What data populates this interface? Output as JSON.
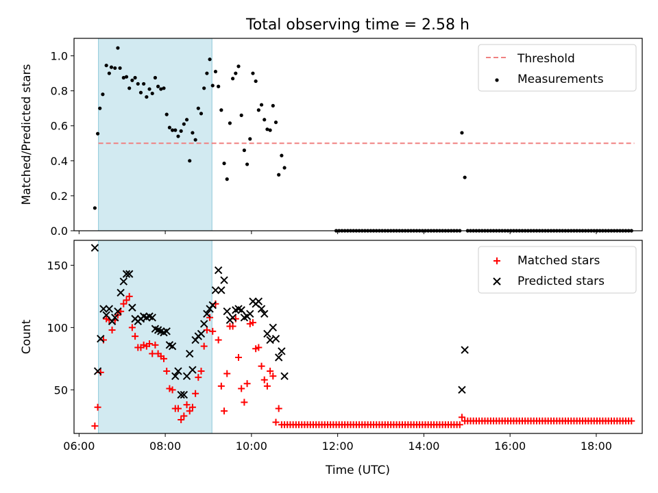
{
  "figure": {
    "title": "Total observing time = 2.58 h",
    "xlabel": "Time (UTC)"
  },
  "chart_data": [
    {
      "type": "scatter",
      "ylabel": "Matched/Predicted stars",
      "xlim": [
        "05:53",
        "19:04"
      ],
      "ylim": [
        0,
        1.1
      ],
      "yticks": [
        0.0,
        0.2,
        0.4,
        0.6,
        0.8,
        1.0
      ],
      "ytick_labels": [
        "0.0",
        "0.2",
        "0.4",
        "0.6",
        "0.8",
        "1.0"
      ],
      "xticks": [
        "06:00",
        "08:00",
        "10:00",
        "12:00",
        "14:00",
        "16:00",
        "18:00"
      ],
      "shaded_region": {
        "x0": "06:27",
        "x1": "09:05",
        "color": "#add8e6"
      },
      "legend": {
        "position": "upper right",
        "entries": [
          "Threshold",
          "Measurements"
        ]
      },
      "threshold": {
        "name": "Threshold",
        "value": 0.5,
        "x0": "06:27",
        "x1": "18:53",
        "color": "#f08080",
        "style": "dashed"
      },
      "series": [
        {
          "name": "Measurements",
          "color": "#000000",
          "marker": "dot",
          "points": [
            [
              "06:22",
              0.13
            ],
            [
              "06:26",
              0.555
            ],
            [
              "06:29",
              0.7
            ],
            [
              "06:33",
              0.78
            ],
            [
              "06:38",
              0.945
            ],
            [
              "06:42",
              0.9
            ],
            [
              "06:45",
              0.935
            ],
            [
              "06:50",
              0.93
            ],
            [
              "06:54",
              1.045
            ],
            [
              "06:57",
              0.93
            ],
            [
              "07:02",
              0.875
            ],
            [
              "07:06",
              0.88
            ],
            [
              "07:10",
              0.815
            ],
            [
              "07:14",
              0.86
            ],
            [
              "07:18",
              0.875
            ],
            [
              "07:22",
              0.84
            ],
            [
              "07:26",
              0.79
            ],
            [
              "07:30",
              0.84
            ],
            [
              "07:34",
              0.765
            ],
            [
              "07:38",
              0.81
            ],
            [
              "07:42",
              0.785
            ],
            [
              "07:46",
              0.875
            ],
            [
              "07:50",
              0.825
            ],
            [
              "07:54",
              0.81
            ],
            [
              "07:58",
              0.815
            ],
            [
              "08:02",
              0.665
            ],
            [
              "08:06",
              0.59
            ],
            [
              "08:10",
              0.575
            ],
            [
              "08:14",
              0.575
            ],
            [
              "08:18",
              0.54
            ],
            [
              "08:22",
              0.57
            ],
            [
              "08:26",
              0.61
            ],
            [
              "08:30",
              0.635
            ],
            [
              "08:34",
              0.4
            ],
            [
              "08:38",
              0.56
            ],
            [
              "08:42",
              0.52
            ],
            [
              "08:46",
              0.7
            ],
            [
              "08:50",
              0.67
            ],
            [
              "08:54",
              0.815
            ],
            [
              "08:58",
              0.9
            ],
            [
              "09:02",
              0.98
            ],
            [
              "09:06",
              0.83
            ],
            [
              "09:10",
              0.91
            ],
            [
              "09:14",
              0.825
            ],
            [
              "09:18",
              0.69
            ],
            [
              "09:22",
              0.385
            ],
            [
              "09:26",
              0.295
            ],
            [
              "09:30",
              0.615
            ],
            [
              "09:34",
              0.87
            ],
            [
              "09:38",
              0.9
            ],
            [
              "09:42",
              0.94
            ],
            [
              "09:46",
              0.66
            ],
            [
              "09:50",
              0.46
            ],
            [
              "09:54",
              0.38
            ],
            [
              "09:58",
              0.525
            ],
            [
              "10:02",
              0.9
            ],
            [
              "10:06",
              0.855
            ],
            [
              "10:10",
              0.69
            ],
            [
              "10:14",
              0.72
            ],
            [
              "10:18",
              0.635
            ],
            [
              "10:22",
              0.58
            ],
            [
              "10:26",
              0.575
            ],
            [
              "10:30",
              0.715
            ],
            [
              "10:34",
              0.62
            ],
            [
              "10:38",
              0.32
            ],
            [
              "10:42",
              0.43
            ],
            [
              "10:46",
              0.36
            ],
            [
              "14:53",
              0.56
            ],
            [
              "14:57",
              0.305
            ]
          ],
          "zero_runs": [
            {
              "from": "11:58",
              "to": "14:50",
              "value": 0.0
            },
            {
              "from": "15:01",
              "to": "18:52",
              "value": 0.0
            }
          ]
        }
      ]
    },
    {
      "type": "scatter",
      "ylabel": "Count",
      "xlim": [
        "05:53",
        "19:04"
      ],
      "ylim": [
        15,
        170
      ],
      "yticks": [
        50,
        100,
        150
      ],
      "ytick_labels": [
        "50",
        "100",
        "150"
      ],
      "xticks": [
        "06:00",
        "08:00",
        "10:00",
        "12:00",
        "14:00",
        "16:00",
        "18:00"
      ],
      "xtick_labels": [
        "06:00",
        "08:00",
        "10:00",
        "12:00",
        "14:00",
        "16:00",
        "18:00"
      ],
      "shaded_region": {
        "x0": "06:27",
        "x1": "09:05",
        "color": "#add8e6"
      },
      "legend": {
        "position": "upper right",
        "entries": [
          "Matched stars",
          "Predicted stars"
        ]
      },
      "series": [
        {
          "name": "Matched stars",
          "color": "#ff0000",
          "marker": "plus",
          "points": [
            [
              "06:22",
              21
            ],
            [
              "06:26",
              36
            ],
            [
              "06:30",
              64
            ],
            [
              "06:34",
              90
            ],
            [
              "06:38",
              107
            ],
            [
              "06:42",
              106
            ],
            [
              "06:46",
              98
            ],
            [
              "06:50",
              106
            ],
            [
              "06:54",
              110
            ],
            [
              "06:58",
              113
            ],
            [
              "07:02",
              119
            ],
            [
              "07:06",
              122
            ],
            [
              "07:10",
              125
            ],
            [
              "07:14",
              100
            ],
            [
              "07:18",
              93
            ],
            [
              "07:22",
              84
            ],
            [
              "07:26",
              84
            ],
            [
              "07:30",
              86
            ],
            [
              "07:34",
              85
            ],
            [
              "07:38",
              87
            ],
            [
              "07:42",
              79
            ],
            [
              "07:46",
              86
            ],
            [
              "07:50",
              79
            ],
            [
              "07:54",
              77
            ],
            [
              "07:58",
              75
            ],
            [
              "08:02",
              65
            ],
            [
              "08:06",
              51
            ],
            [
              "08:10",
              50
            ],
            [
              "08:14",
              35
            ],
            [
              "08:18",
              35
            ],
            [
              "08:22",
              26
            ],
            [
              "08:26",
              29
            ],
            [
              "08:30",
              38
            ],
            [
              "08:34",
              33
            ],
            [
              "08:38",
              36
            ],
            [
              "08:42",
              47
            ],
            [
              "08:46",
              60
            ],
            [
              "08:50",
              65
            ],
            [
              "08:54",
              85
            ],
            [
              "08:58",
              98
            ],
            [
              "09:02",
              108
            ],
            [
              "09:06",
              97
            ],
            [
              "09:10",
              119
            ],
            [
              "09:14",
              90
            ],
            [
              "09:18",
              53
            ],
            [
              "09:22",
              33
            ],
            [
              "09:26",
              63
            ],
            [
              "09:30",
              101
            ],
            [
              "09:34",
              101
            ],
            [
              "09:38",
              107
            ],
            [
              "09:42",
              76
            ],
            [
              "09:46",
              51
            ],
            [
              "09:50",
              40
            ],
            [
              "09:54",
              55
            ],
            [
              "09:58",
              103
            ],
            [
              "10:02",
              104
            ],
            [
              "10:06",
              83
            ],
            [
              "10:10",
              84
            ],
            [
              "10:14",
              69
            ],
            [
              "10:18",
              58
            ],
            [
              "10:22",
              53
            ],
            [
              "10:26",
              65
            ],
            [
              "10:30",
              61
            ],
            [
              "10:34",
              24
            ],
            [
              "10:38",
              35
            ],
            [
              "14:53",
              28
            ],
            [
              "14:57",
              25
            ]
          ],
          "flat_runs": [
            {
              "from": "10:42",
              "to": "14:50",
              "value": 22
            },
            {
              "from": "15:01",
              "to": "18:52",
              "value": 25
            }
          ]
        },
        {
          "name": "Predicted stars",
          "color": "#000000",
          "marker": "x",
          "points": [
            [
              "06:22",
              164
            ],
            [
              "06:26",
              65
            ],
            [
              "06:30",
              91
            ],
            [
              "06:34",
              115
            ],
            [
              "06:38",
              110
            ],
            [
              "06:42",
              115
            ],
            [
              "06:46",
              105
            ],
            [
              "06:50",
              108
            ],
            [
              "06:54",
              113
            ],
            [
              "06:58",
              128
            ],
            [
              "07:02",
              137
            ],
            [
              "07:06",
              143
            ],
            [
              "07:10",
              143
            ],
            [
              "07:14",
              116
            ],
            [
              "07:18",
              107
            ],
            [
              "07:22",
              105
            ],
            [
              "07:26",
              107
            ],
            [
              "07:30",
              109
            ],
            [
              "07:34",
              108
            ],
            [
              "07:38",
              109
            ],
            [
              "07:42",
              108
            ],
            [
              "07:46",
              99
            ],
            [
              "07:50",
              98
            ],
            [
              "07:54",
              97
            ],
            [
              "07:58",
              96
            ],
            [
              "08:02",
              97
            ],
            [
              "08:06",
              86
            ],
            [
              "08:10",
              85
            ],
            [
              "08:14",
              61
            ],
            [
              "08:18",
              65
            ],
            [
              "08:22",
              46
            ],
            [
              "08:26",
              46
            ],
            [
              "08:30",
              61
            ],
            [
              "08:34",
              79
            ],
            [
              "08:38",
              66
            ],
            [
              "08:42",
              90
            ],
            [
              "08:46",
              93
            ],
            [
              "08:50",
              95
            ],
            [
              "08:54",
              103
            ],
            [
              "08:58",
              111
            ],
            [
              "09:02",
              115
            ],
            [
              "09:06",
              118
            ],
            [
              "09:10",
              130
            ],
            [
              "09:14",
              146
            ],
            [
              "09:18",
              130
            ],
            [
              "09:22",
              138
            ],
            [
              "09:26",
              113
            ],
            [
              "09:30",
              106
            ],
            [
              "09:34",
              108
            ],
            [
              "09:38",
              114
            ],
            [
              "09:42",
              115
            ],
            [
              "09:46",
              114
            ],
            [
              "09:50",
              108
            ],
            [
              "09:54",
              109
            ],
            [
              "09:58",
              111
            ],
            [
              "10:02",
              121
            ],
            [
              "10:06",
              119
            ],
            [
              "10:10",
              121
            ],
            [
              "10:14",
              115
            ],
            [
              "10:18",
              111
            ],
            [
              "10:22",
              95
            ],
            [
              "10:26",
              90
            ],
            [
              "10:30",
              100
            ],
            [
              "10:34",
              91
            ],
            [
              "10:38",
              76
            ],
            [
              "10:42",
              81
            ],
            [
              "10:46",
              61
            ],
            [
              "14:53",
              50
            ],
            [
              "14:57",
              82
            ]
          ]
        }
      ]
    }
  ]
}
